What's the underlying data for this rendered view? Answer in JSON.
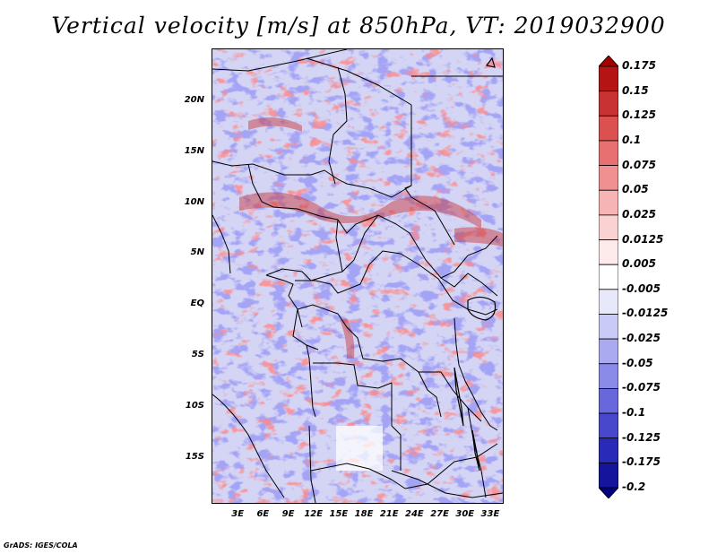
{
  "title": "Vertical velocity [m/s] at 850hPa, VT: 2019032900",
  "credit": "GrADS: IGES/COLA",
  "lat_labels": [
    "20N",
    "15N",
    "10N",
    "5N",
    "EQ",
    "5S",
    "10S",
    "15S"
  ],
  "lat_values": [
    20,
    15,
    10,
    5,
    0,
    -5,
    -10,
    -15
  ],
  "lon_labels": [
    "3E",
    "6E",
    "9E",
    "12E",
    "15E",
    "18E",
    "21E",
    "24E",
    "27E",
    "30E",
    "33E"
  ],
  "lon_values": [
    3,
    6,
    9,
    12,
    15,
    18,
    21,
    24,
    27,
    30,
    33
  ],
  "map_extent": {
    "lon_min": 0,
    "lon_max": 34.5,
    "lat_min": -19.5,
    "lat_max": 25
  },
  "colorbar": {
    "levels": [
      "0.175",
      "0.15",
      "0.125",
      "0.1",
      "0.075",
      "0.05",
      "0.025",
      "0.0125",
      "0.005",
      "-0.005",
      "-0.0125",
      "-0.025",
      "-0.05",
      "-0.075",
      "-0.1",
      "-0.125",
      "-0.175",
      "-0.2"
    ],
    "colors": [
      "#a00000",
      "#b41414",
      "#c83232",
      "#dc5050",
      "#e87070",
      "#f09090",
      "#f6b4b4",
      "#fad2d2",
      "#fdeaea",
      "#ffffff",
      "#e8e8fb",
      "#cacaf6",
      "#aaaaf0",
      "#8a8ae8",
      "#6868dc",
      "#4848cc",
      "#2a2ab8",
      "#14149c",
      "#000080"
    ]
  }
}
